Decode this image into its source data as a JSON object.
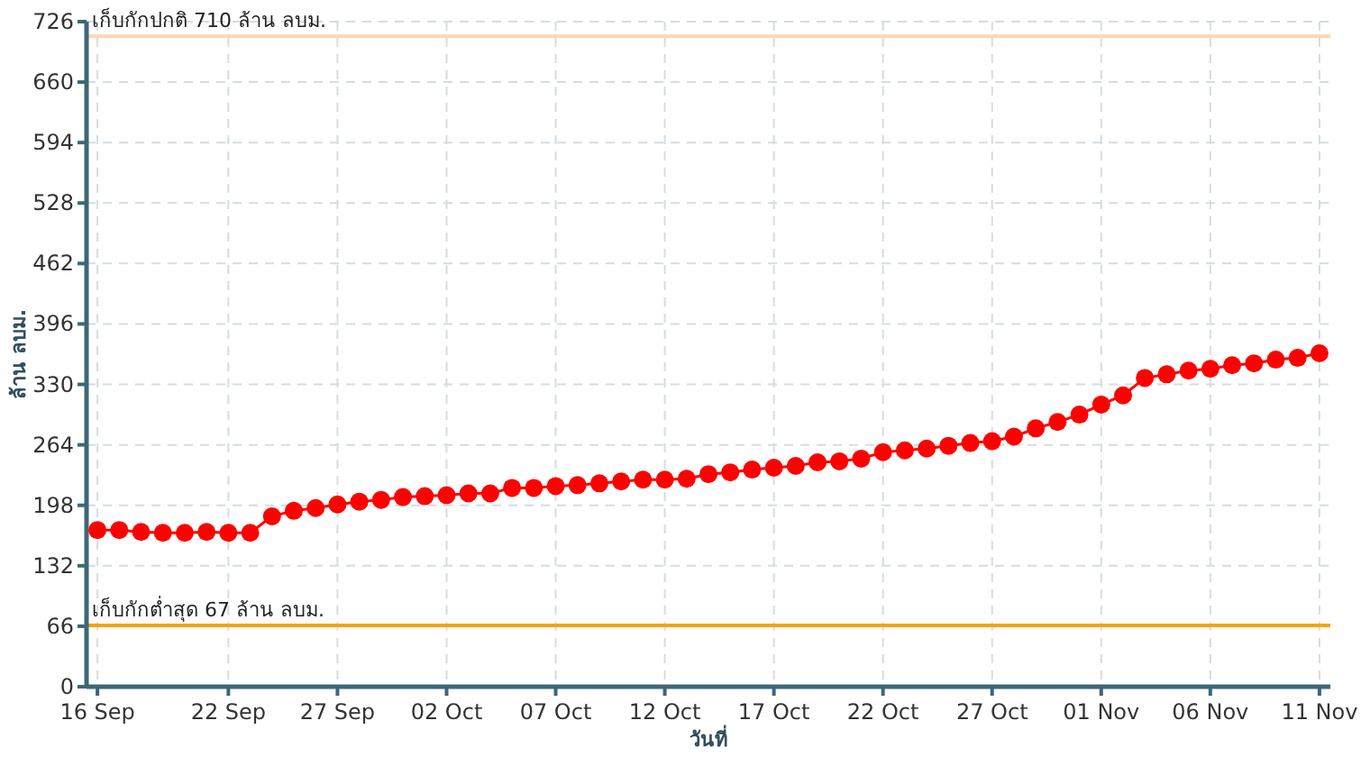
{
  "chart_data": {
    "type": "line",
    "xlabel": "วันที่",
    "ylabel": "ล้าน ลบม.",
    "x": [
      "--09-16",
      "--09-17",
      "--09-18",
      "--09-19",
      "--09-20",
      "--09-21",
      "--09-22",
      "--09-23",
      "--09-24",
      "--09-25",
      "--09-26",
      "--09-27",
      "--09-28",
      "--09-29",
      "--09-30",
      "--10-01",
      "--10-02",
      "--10-03",
      "--10-04",
      "--10-05",
      "--10-06",
      "--10-07",
      "--10-08",
      "--10-09",
      "--10-10",
      "--10-11",
      "--10-12",
      "--10-13",
      "--10-14",
      "--10-15",
      "--10-16",
      "--10-17",
      "--10-18",
      "--10-19",
      "--10-20",
      "--10-21",
      "--10-22",
      "--10-23",
      "--10-24",
      "--10-25",
      "--10-26",
      "--10-27",
      "--10-28",
      "--10-29",
      "--10-30",
      "--10-31",
      "--11-01",
      "--11-02",
      "--11-03",
      "--11-04",
      "--11-05",
      "--11-06",
      "--11-07",
      "--11-08",
      "--11-09",
      "--11-10",
      "--11-11"
    ],
    "series": [
      {
        "color": "#ff0000",
        "values": [
          171,
          171,
          169,
          168,
          168,
          169,
          168,
          168,
          186,
          192,
          195,
          199,
          202,
          204,
          207,
          208,
          209,
          211,
          211,
          217,
          217,
          219,
          220,
          222,
          224,
          226,
          226,
          227,
          232,
          234,
          237,
          239,
          241,
          245,
          246,
          249,
          256,
          258,
          260,
          263,
          266,
          268,
          273,
          282,
          289,
          297,
          308,
          318,
          337,
          341,
          345,
          347,
          351,
          353,
          357,
          359,
          364
        ]
      }
    ],
    "xlim": [
      "--09-16",
      "--11-11"
    ],
    "xticks": [
      {
        "value": "--09-16",
        "label": "16 Sep"
      },
      {
        "value": "--09-22",
        "label": "22 Sep"
      },
      {
        "value": "--09-27",
        "label": "27 Sep"
      },
      {
        "value": "--10-02",
        "label": "02 Oct"
      },
      {
        "value": "--10-07",
        "label": "07 Oct"
      },
      {
        "value": "--10-12",
        "label": "12 Oct"
      },
      {
        "value": "--10-17",
        "label": "17 Oct"
      },
      {
        "value": "--10-22",
        "label": "22 Oct"
      },
      {
        "value": "--10-27",
        "label": "27 Oct"
      },
      {
        "value": "--11-01",
        "label": "01 Nov"
      },
      {
        "value": "--11-06",
        "label": "06 Nov"
      },
      {
        "value": "--11-11",
        "label": "11 Nov"
      }
    ],
    "ylim": [
      0,
      726
    ],
    "yticks": [
      0,
      66,
      132,
      198,
      264,
      330,
      396,
      462,
      528,
      594,
      660,
      726
    ],
    "ref_lines": [
      {
        "axis": "y",
        "value": 710,
        "label": "เก็บกักปกติ 710 ล้าน ลบม.",
        "color": "#fdd5b4"
      },
      {
        "axis": "y",
        "value": 67,
        "label": "เก็บกักต่ำสุด 67 ล้าน ลบม.",
        "color": "#f5a300"
      }
    ],
    "grid": true,
    "marker": "circle",
    "line_style": "solid"
  }
}
